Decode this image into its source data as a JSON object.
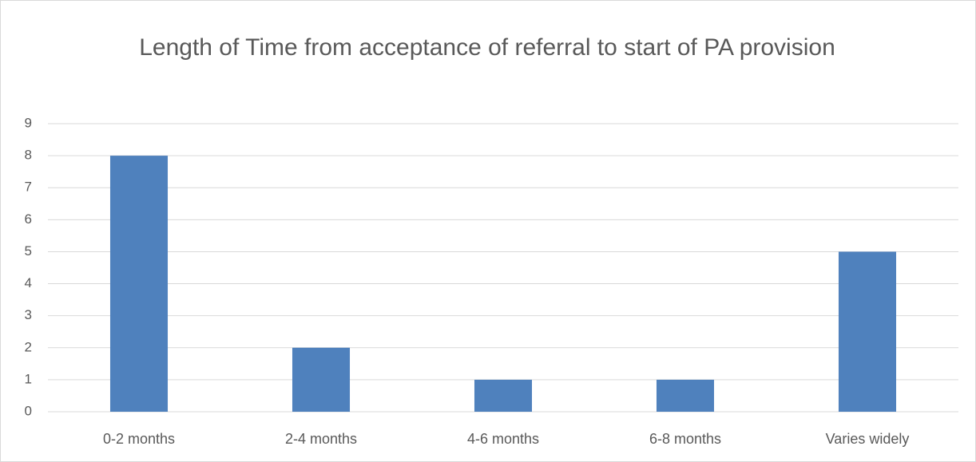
{
  "chart_data": {
    "type": "bar",
    "title": "Length of Time from acceptance of referral to start of PA provision",
    "categories": [
      "0-2 months",
      "2-4 months",
      "4-6 months",
      "6-8 months",
      "Varies widely"
    ],
    "values": [
      8,
      2,
      1,
      1,
      5
    ],
    "color": "#4f81bd",
    "ylim": [
      0,
      9
    ],
    "yticks": [
      0,
      1,
      2,
      3,
      4,
      5,
      6,
      7,
      8,
      9
    ],
    "grid": true
  }
}
